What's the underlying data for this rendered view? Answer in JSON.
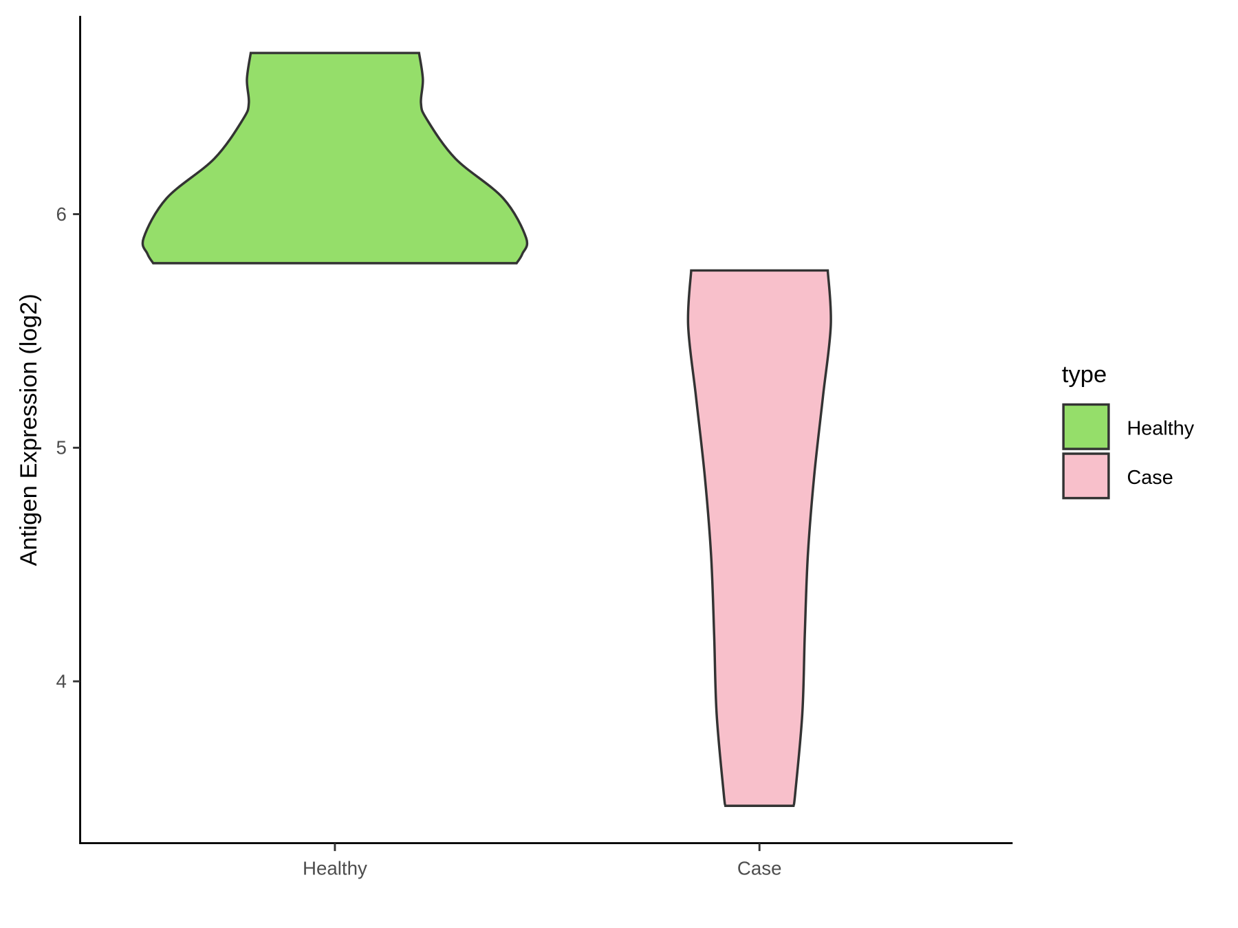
{
  "chart_data": {
    "type": "violin",
    "title": "",
    "xlabel": "",
    "ylabel": "Antigen Expression (log2)",
    "ylim": [
      3.35,
      6.85
    ],
    "yticks": [
      4,
      5,
      6
    ],
    "ytick_labels": [
      "4",
      "5",
      "6"
    ],
    "categories": [
      "Healthy",
      "Case"
    ],
    "grid": false,
    "legend": {
      "title": "type",
      "position": "right",
      "entries": [
        "Healthy",
        "Case"
      ]
    },
    "series": [
      {
        "name": "Healthy",
        "color": "#95DE6A",
        "min": 5.79,
        "max": 6.69,
        "profile_values": [
          6.69,
          6.577,
          6.475,
          6.407,
          6.238,
          6.068,
          5.898,
          5.83,
          5.79
        ],
        "profile_relative_width": [
          0.44,
          0.46,
          0.45,
          0.48,
          0.63,
          0.88,
          1.0,
          0.98,
          0.95
        ]
      },
      {
        "name": "Case",
        "color": "#F8C0CB",
        "min": 3.47,
        "max": 5.76,
        "profile_values": [
          5.759,
          5.525,
          5.219,
          4.879,
          4.54,
          4.2,
          3.861,
          3.521,
          3.467
        ],
        "profile_relative_width": [
          0.357,
          0.373,
          0.332,
          0.286,
          0.253,
          0.237,
          0.224,
          0.187,
          0.178
        ]
      }
    ]
  }
}
